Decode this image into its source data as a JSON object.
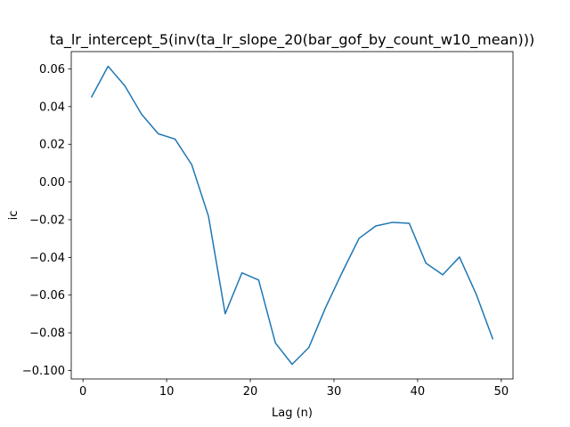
{
  "chart_data": {
    "type": "line",
    "title": "ta_lr_intercept_5(inv(ta_lr_slope_20(bar_gof_by_count_w10_mean)))",
    "xlabel": "Lag (n)",
    "ylabel": "ic",
    "x": [
      1,
      3,
      5,
      7,
      9,
      11,
      13,
      15,
      17,
      19,
      21,
      23,
      25,
      27,
      29,
      31,
      33,
      35,
      37,
      39,
      41,
      43,
      45,
      47,
      49
    ],
    "values": [
      0.0449,
      0.0614,
      0.0511,
      0.036,
      0.0256,
      0.0228,
      0.0092,
      -0.0181,
      -0.0699,
      -0.0482,
      -0.052,
      -0.0854,
      -0.0967,
      -0.0878,
      -0.0666,
      -0.0478,
      -0.0299,
      -0.0233,
      -0.0214,
      -0.0219,
      -0.0431,
      -0.0492,
      -0.0398,
      -0.0595,
      -0.0835
    ],
    "color": "#1f77b4",
    "xlim": [
      -1.4,
      51.4
    ],
    "xticks": [
      0,
      10,
      20,
      30,
      40,
      50
    ],
    "ylim": [
      -0.1045,
      0.0692
    ],
    "yticks": [
      {
        "value": -0.1,
        "label": "−0.100"
      },
      {
        "value": -0.08,
        "label": "−0.08"
      },
      {
        "value": -0.06,
        "label": "−0.06"
      },
      {
        "value": -0.04,
        "label": "−0.04"
      },
      {
        "value": -0.02,
        "label": "−0.02"
      },
      {
        "value": 0,
        "label": "0.00"
      },
      0.02,
      0.04,
      0.06
    ]
  }
}
